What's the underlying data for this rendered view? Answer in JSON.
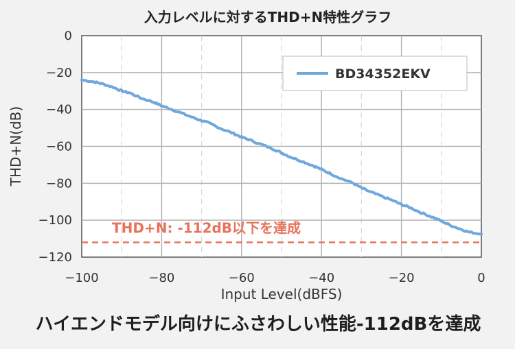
{
  "chart_data": {
    "type": "line",
    "title": "入力レベルに対するTHD+N特性グラフ",
    "xlabel": "Input Level(dBFS)",
    "ylabel": "THD+N(dB)",
    "xlim": [
      -100,
      0
    ],
    "ylim": [
      -120,
      0
    ],
    "x_ticks": [
      -100,
      -80,
      -60,
      -40,
      -20,
      0
    ],
    "x_tick_labels": [
      "−100",
      "−80",
      "−60",
      "−40",
      "−20",
      "0"
    ],
    "y_ticks": [
      0,
      -20,
      -40,
      -60,
      -80,
      -100,
      -120
    ],
    "y_tick_labels": [
      "0",
      "−20",
      "−40",
      "−60",
      "−80",
      "−100",
      "−120"
    ],
    "grid": {
      "solid_x": [
        -80,
        -60,
        -40,
        -20
      ],
      "dashed_x": [
        -90,
        -70,
        -50,
        -30,
        -10
      ],
      "y": [
        -20,
        -40,
        -60,
        -80,
        -100
      ]
    },
    "legend_position": "top-right",
    "series": [
      {
        "name": "BD34352EKV",
        "color": "#6fa8dc",
        "x": [
          -100,
          -97,
          -95,
          -92,
          -90,
          -88,
          -85,
          -82,
          -80,
          -78,
          -75,
          -72,
          -70,
          -68,
          -65,
          -62,
          -60,
          -58,
          -55,
          -52,
          -50,
          -48,
          -45,
          -42,
          -40,
          -38,
          -35,
          -32,
          -30,
          -28,
          -25,
          -22,
          -20,
          -18,
          -15,
          -12,
          -10,
          -8,
          -5,
          -3,
          0
        ],
        "y": [
          -24,
          -25,
          -26,
          -28,
          -30,
          -31,
          -34,
          -36,
          -38,
          -39.5,
          -42,
          -44.5,
          -46,
          -47.5,
          -50.5,
          -53,
          -55,
          -56.5,
          -59,
          -61.5,
          -63.5,
          -65.5,
          -68,
          -70.5,
          -72.5,
          -74.5,
          -77.5,
          -80,
          -82.5,
          -84.5,
          -87,
          -89.5,
          -91.5,
          -93,
          -96,
          -98.5,
          -100.5,
          -102.5,
          -105,
          -106.5,
          -107.5
        ]
      }
    ],
    "annotations": [
      {
        "text": "THD+N: -112dB以下を達成",
        "y": -112,
        "color": "#e8735a",
        "style": "dashed"
      }
    ]
  },
  "caption": "ハイエンドモデル向けにふさわしい性能-112dBを達成"
}
